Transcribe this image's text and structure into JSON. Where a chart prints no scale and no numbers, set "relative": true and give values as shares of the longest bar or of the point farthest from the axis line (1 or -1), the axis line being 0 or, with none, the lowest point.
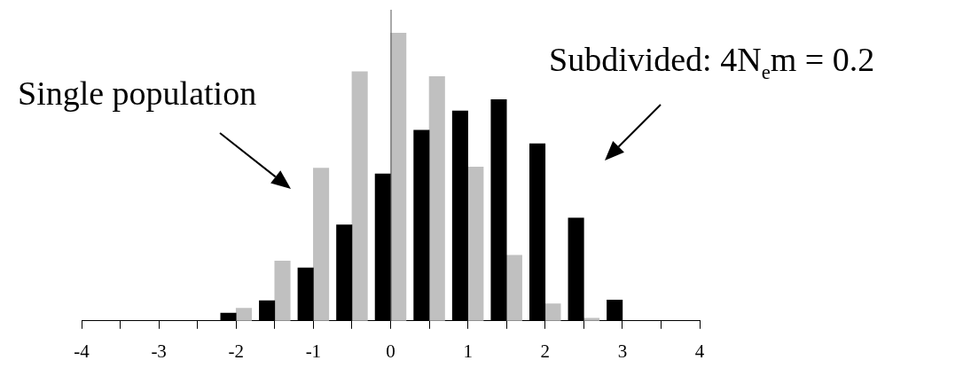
{
  "chart_data": {
    "type": "bar",
    "relative": true,
    "xlim": [
      -4,
      4
    ],
    "xticks": [
      -4,
      {
        "value": -3.5,
        "label": null
      },
      -3,
      {
        "value": -2.5,
        "label": null
      },
      -2,
      {
        "value": -1.5,
        "label": null
      },
      -1,
      {
        "value": -0.5,
        "label": null
      },
      0,
      {
        "value": 0.5,
        "label": null
      },
      1,
      {
        "value": 1.5,
        "label": null
      },
      2,
      {
        "value": 2.5,
        "label": null
      },
      3,
      {
        "value": 3.5,
        "label": null
      },
      4
    ],
    "series": [
      {
        "color": "#000000",
        "x": [
          -2.1,
          -1.6,
          -1.1,
          -0.6,
          -0.1,
          0.4,
          0.9,
          1.4,
          1.9,
          2.4,
          2.9
        ],
        "values": [
          0.027,
          0.07,
          0.184,
          0.333,
          0.51,
          0.662,
          0.729,
          0.768,
          0.615,
          0.357,
          0.072
        ]
      },
      {
        "color": "#c0c0c0",
        "x": [
          -1.9,
          -1.4,
          -0.9,
          -0.4,
          0.1,
          0.6,
          1.1,
          1.6,
          2.1,
          2.6
        ],
        "values": [
          0.044,
          0.208,
          0.53,
          0.865,
          1,
          0.848,
          0.534,
          0.228,
          0.059,
          0.009
        ]
      }
    ],
    "annotations": [
      "Single population",
      "Subdivided: 4N$_{e}$m = 0.2"
    ]
  }
}
